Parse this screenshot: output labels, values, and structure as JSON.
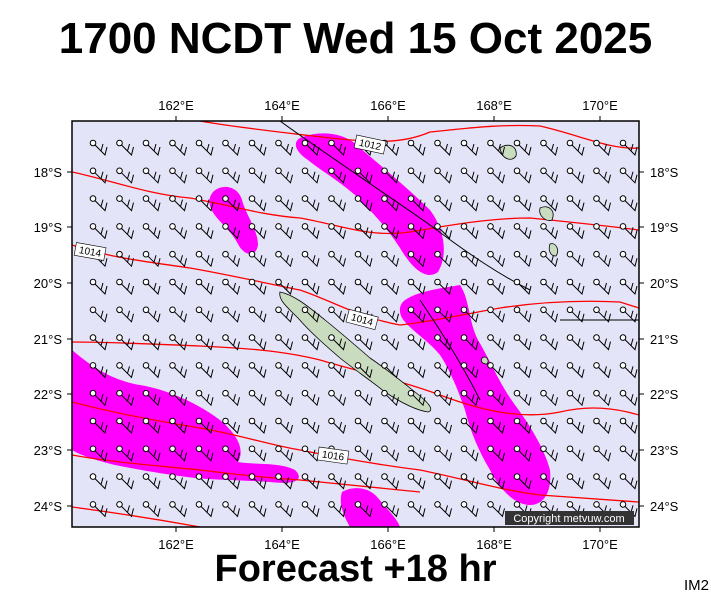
{
  "title": "1700 NCDT Wed 15 Oct 2025",
  "subtitle": "Forecast +18 hr",
  "image_tag": "IM2",
  "copyright": "Copyright metvuw.com",
  "map": {
    "lon_labels": [
      "162°E",
      "164°E",
      "166°E",
      "168°E",
      "170°E"
    ],
    "lat_labels": [
      "18°S",
      "19°S",
      "20°S",
      "21°S",
      "22°S",
      "23°S",
      "24°S"
    ],
    "isobar_labels": [
      "1012",
      "1014",
      "1014",
      "1016"
    ]
  },
  "colors": {
    "ocean": "#e4e4f8",
    "isobar": "#ff0000",
    "wind_band": "#ff00ff",
    "land": "#c9dcc0"
  }
}
